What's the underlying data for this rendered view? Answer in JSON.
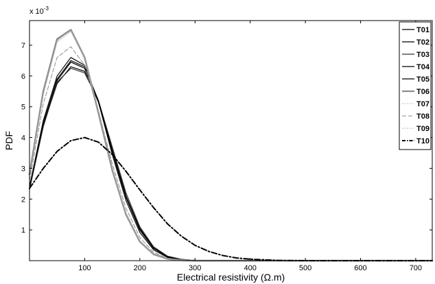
{
  "chart_data": {
    "type": "line",
    "title": "",
    "xlabel": "Electrical resistivity (Ω.m)",
    "ylabel": "PDF",
    "y_scale_label": "x 10",
    "y_scale_exponent": "-3",
    "xlim": [
      0,
      730
    ],
    "ylim": [
      0,
      7.8
    ],
    "x_ticks": [
      100,
      200,
      300,
      400,
      500,
      600,
      700
    ],
    "y_ticks": [
      1,
      2,
      3,
      4,
      5,
      6,
      7
    ],
    "grid": false,
    "legend_position": "top-right",
    "x": [
      0,
      25,
      50,
      75,
      100,
      125,
      150,
      175,
      200,
      225,
      250,
      275,
      300,
      325,
      350,
      375,
      400,
      450,
      500,
      550,
      600,
      650,
      700,
      730
    ],
    "series": [
      {
        "name": "T01",
        "color": "#000000",
        "style": "solid",
        "width": 1.2,
        "values": [
          2.4,
          4.4,
          5.75,
          6.3,
          6.15,
          5.15,
          3.6,
          2.1,
          1.05,
          0.42,
          0.14,
          0.04,
          0.01,
          0,
          0,
          0,
          0,
          0,
          0,
          0,
          0,
          0,
          0,
          0
        ]
      },
      {
        "name": "T02",
        "color": "#000000",
        "style": "solid",
        "width": 1.2,
        "values": [
          2.35,
          4.45,
          5.85,
          6.45,
          6.25,
          5.15,
          3.55,
          2.05,
          1.0,
          0.4,
          0.13,
          0.04,
          0.01,
          0,
          0,
          0,
          0,
          0,
          0,
          0,
          0,
          0,
          0,
          0
        ]
      },
      {
        "name": "T03",
        "color": "#333333",
        "style": "solid",
        "width": 1.2,
        "values": [
          2.3,
          4.35,
          5.8,
          6.25,
          6.1,
          5.2,
          3.7,
          2.2,
          1.1,
          0.45,
          0.15,
          0.045,
          0.01,
          0,
          0,
          0,
          0,
          0,
          0,
          0,
          0,
          0,
          0,
          0
        ]
      },
      {
        "name": "T04",
        "color": "#000000",
        "style": "solid",
        "width": 1.2,
        "values": [
          2.4,
          4.55,
          6.0,
          6.6,
          6.35,
          5.15,
          3.45,
          1.95,
          0.92,
          0.35,
          0.11,
          0.03,
          0.01,
          0,
          0,
          0,
          0,
          0,
          0,
          0,
          0,
          0,
          0,
          0
        ]
      },
      {
        "name": "T05",
        "color": "#000000",
        "style": "solid",
        "width": 1.2,
        "values": [
          2.4,
          4.45,
          5.9,
          6.5,
          6.3,
          5.2,
          3.6,
          2.1,
          1.0,
          0.4,
          0.13,
          0.04,
          0.01,
          0,
          0,
          0,
          0,
          0,
          0,
          0,
          0,
          0,
          0,
          0
        ]
      },
      {
        "name": "T06",
        "color": "#8c8c8c",
        "style": "solid",
        "width": 2.6,
        "values": [
          2.8,
          5.5,
          7.2,
          7.5,
          6.6,
          4.8,
          2.95,
          1.5,
          0.62,
          0.21,
          0.06,
          0.015,
          0,
          0,
          0,
          0,
          0,
          0,
          0,
          0,
          0,
          0,
          0,
          0
        ]
      },
      {
        "name": "T07",
        "color": "#b0b0b0",
        "style": "dotted",
        "width": 1.0,
        "values": [
          2.7,
          5.4,
          7.1,
          7.45,
          6.6,
          4.85,
          3.0,
          1.55,
          0.65,
          0.22,
          0.06,
          0.015,
          0,
          0,
          0,
          0,
          0,
          0,
          0,
          0,
          0,
          0,
          0,
          0
        ]
      },
      {
        "name": "T08",
        "color": "#8c8c8c",
        "style": "dashed",
        "width": 1.0,
        "values": [
          2.6,
          5.1,
          6.6,
          6.95,
          6.35,
          4.85,
          3.15,
          1.7,
          0.75,
          0.27,
          0.08,
          0.02,
          0.005,
          0,
          0,
          0,
          0,
          0,
          0,
          0,
          0,
          0,
          0,
          0
        ]
      },
      {
        "name": "T09",
        "color": "#a0a0a0",
        "style": "dotted",
        "width": 1.0,
        "values": [
          2.75,
          5.45,
          7.15,
          7.5,
          6.6,
          4.8,
          2.95,
          1.5,
          0.62,
          0.21,
          0.06,
          0.015,
          0,
          0,
          0,
          0,
          0,
          0,
          0,
          0,
          0,
          0,
          0,
          0
        ]
      },
      {
        "name": "T10",
        "color": "#000000",
        "style": "dashdot",
        "width": 2.0,
        "values": [
          2.35,
          3.0,
          3.55,
          3.9,
          4.0,
          3.85,
          3.45,
          2.9,
          2.3,
          1.72,
          1.2,
          0.8,
          0.5,
          0.3,
          0.17,
          0.09,
          0.05,
          0.01,
          0,
          0,
          0,
          0,
          0,
          0
        ]
      }
    ]
  }
}
